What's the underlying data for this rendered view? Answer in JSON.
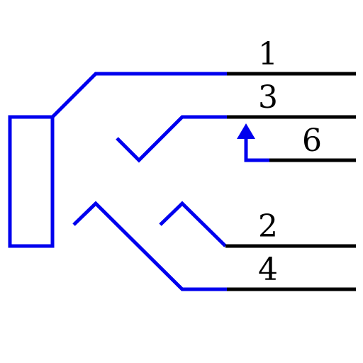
{
  "colors": {
    "contact": "#0000ee",
    "terminal": "#000000",
    "background": "#ffffff"
  },
  "pins": {
    "p1": "1",
    "p3": "3",
    "p6": "6",
    "p2": "2",
    "p4": "4"
  }
}
